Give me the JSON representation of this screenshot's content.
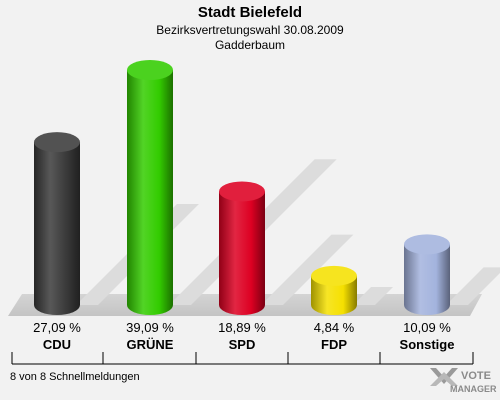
{
  "chart_data": {
    "type": "bar",
    "title": "Stadt Bielefeld",
    "subtitle": "Bezirksvertretungswahl 30.08.2009",
    "subtitle2": "Gadderbaum",
    "categories": [
      "CDU",
      "GRÜNE",
      "SPD",
      "FDP",
      "Sonstige"
    ],
    "values": [
      27.09,
      39.09,
      18.89,
      4.84,
      10.09
    ],
    "value_labels": [
      "27,09 %",
      "39,09 %",
      "18,89 %",
      "4,84 %",
      "10,09 %"
    ],
    "colors": [
      "#3a3a3a",
      "#33cc00",
      "#dd0022",
      "#f5e000",
      "#a3b3dd"
    ],
    "ylim": [
      0,
      39.09
    ],
    "grid": false,
    "legend": "none"
  },
  "footer": {
    "status": "8 von 8 Schnellmeldungen"
  },
  "logo": {
    "line1": "VOTE",
    "line2": "MANAGER"
  }
}
